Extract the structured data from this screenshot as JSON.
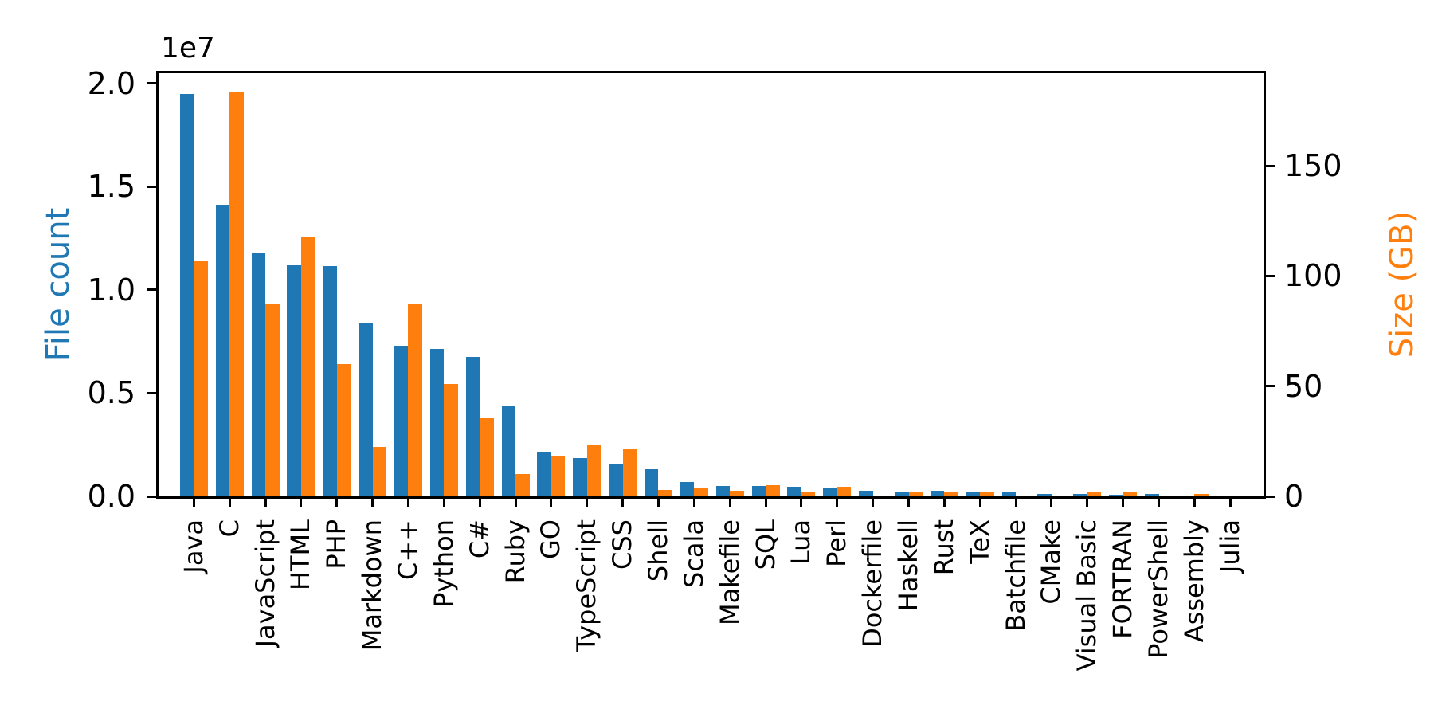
{
  "chart_data": {
    "type": "bar",
    "title": "",
    "categories": [
      "Java",
      "C",
      "JavaScript",
      "HTML",
      "PHP",
      "Markdown",
      "C++",
      "Python",
      "C#",
      "Ruby",
      "GO",
      "TypeScript",
      "CSS",
      "Shell",
      "Scala",
      "Makefile",
      "SQL",
      "Lua",
      "Perl",
      "Dockerfile",
      "Haskell",
      "Rust",
      "TeX",
      "Batchfile",
      "CMake",
      "Visual Basic",
      "FORTRAN",
      "PowerShell",
      "Assembly",
      "Julia"
    ],
    "series": [
      {
        "name": "File count",
        "axis": "left",
        "color": "#1f77b4",
        "values": [
          19500000,
          14150000,
          11800000,
          11200000,
          11150000,
          8400000,
          7300000,
          7150000,
          6750000,
          4400000,
          2150000,
          1850000,
          1600000,
          1300000,
          700000,
          500000,
          520000,
          450000,
          380000,
          280000,
          240000,
          270000,
          190000,
          190000,
          130000,
          130000,
          80000,
          130000,
          50000,
          30000
        ]
      },
      {
        "name": "Size (GB)",
        "axis": "right",
        "color": "#ff7f0e",
        "values": [
          107,
          183.5,
          87,
          117.5,
          60,
          22.5,
          87,
          51,
          35.5,
          10,
          18,
          23,
          21.5,
          3.0,
          3.5,
          2.6,
          5.0,
          2.3,
          4.3,
          0.4,
          1.8,
          2.2,
          1.9,
          0.5,
          0.4,
          1.9,
          1.9,
          0.4,
          1.2,
          0.2
        ]
      }
    ],
    "left_axis": {
      "label": "File count",
      "label_color": "#1f77b4",
      "offset_text": "1e7",
      "tick_values": [
        0,
        5000000,
        10000000,
        15000000,
        20000000
      ],
      "tick_labels": [
        "0.0",
        "0.5",
        "1.0",
        "1.5",
        "2.0"
      ],
      "max": 20500000
    },
    "right_axis": {
      "label": "Size (GB)",
      "label_color": "#ff7f0e",
      "tick_values": [
        0,
        50,
        100,
        150
      ],
      "tick_labels": [
        "0",
        "50",
        "100",
        "150"
      ],
      "max": 192
    },
    "x_axis": {
      "tick_rotation_deg": 90
    },
    "legend": "none",
    "grid": false,
    "background_color": "#ffffff",
    "spine_color": "#000000"
  }
}
